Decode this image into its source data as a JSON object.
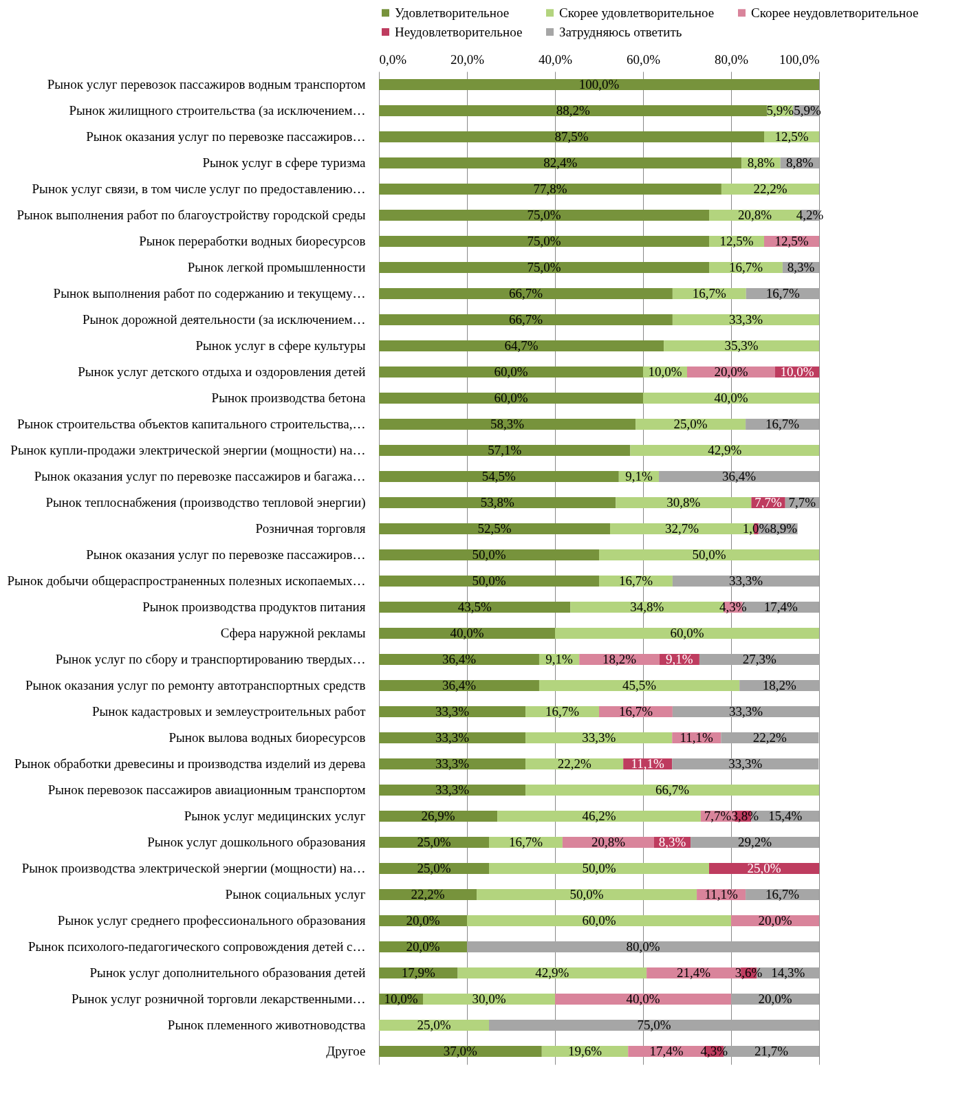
{
  "chart_data": {
    "type": "bar",
    "orientation": "horizontal",
    "stacked": true,
    "legend": "top",
    "grid": "x",
    "xlim": [
      0,
      100
    ],
    "xticks": [
      {
        "value": 0,
        "label": "0,0%"
      },
      {
        "value": 20,
        "label": "20,0%"
      },
      {
        "value": 40,
        "label": "40,0%"
      },
      {
        "value": 60,
        "label": "60,0%"
      },
      {
        "value": 80,
        "label": "80,0%"
      },
      {
        "value": 100,
        "label": "100,0%"
      }
    ],
    "categories": [
      "Рынок услуг перевозок пассажиров водным транспортом",
      "Рынок жилищного строительства (за исключением…",
      "Рынок оказания услуг по перевозке пассажиров…",
      "Рынок услуг в сфере туризма",
      "Рынок услуг связи, в том числе услуг по предоставлению…",
      "Рынок выполнения работ по благоустройству городской среды",
      "Рынок переработки водных биоресурсов",
      "Рынок легкой промышленности",
      "Рынок выполнения работ по содержанию и текущему…",
      "Рынок дорожной деятельности (за исключением…",
      "Рынок услуг в сфере культуры",
      "Рынок услуг детского отдыха и оздоровления детей",
      "Рынок производства бетона",
      "Рынок строительства объектов капитального строительства,…",
      "Рынок купли-продажи электрической энергии (мощности) на…",
      "Рынок оказания услуг по перевозке пассажиров и багажа…",
      "Рынок теплоснабжения (производство тепловой энергии)",
      "Розничная торговля",
      "Рынок оказания услуг по перевозке пассажиров…",
      "Рынок добычи общераспространенных полезных ископаемых…",
      "Рынок производства продуктов питания",
      "Сфера наружной рекламы",
      "Рынок услуг по сбору и транспортированию твердых…",
      "Рынок оказания услуг по ремонту автотранспортных средств",
      "Рынок кадастровых и землеустроительных работ",
      "Рынок вылова водных биоресурсов",
      "Рынок обработки древесины и производства изделий из дерева",
      "Рынок перевозок пассажиров авиационным транспортом",
      "Рынок услуг медицинских услуг",
      "Рынок услуг дошкольного образования",
      "Рынок производства электрической энергии (мощности) на…",
      "Рынок социальных услуг",
      "Рынок услуг среднего профессионального образования",
      "Рынок психолого-педагогического сопровождения детей с…",
      "Рынок услуг дополнительного образования детей",
      "Рынок услуг розничной торговли лекарственными…",
      "Рынок племенного животноводства",
      "Другое"
    ],
    "series": [
      {
        "name": "Удовлетворительное",
        "color": "#77933c",
        "values": [
          100.0,
          88.2,
          87.5,
          82.4,
          77.8,
          75.0,
          75.0,
          75.0,
          66.7,
          66.7,
          64.7,
          60.0,
          60.0,
          58.3,
          57.1,
          54.5,
          53.8,
          52.5,
          50.0,
          50.0,
          43.5,
          40.0,
          36.4,
          36.4,
          33.3,
          33.3,
          33.3,
          33.3,
          26.9,
          25.0,
          25.0,
          22.2,
          20.0,
          20.0,
          17.9,
          10.0,
          null,
          37.0
        ],
        "value_labels": [
          "100,0%",
          "88,2%",
          "87,5%",
          "82,4%",
          "77,8%",
          "75,0%",
          "75,0%",
          "75,0%",
          "66,7%",
          "66,7%",
          "64,7%",
          "60,0%",
          "60,0%",
          "58,3%",
          "57,1%",
          "54,5%",
          "53,8%",
          "52,5%",
          "50,0%",
          "50,0%",
          "43,5%",
          "40,0%",
          "36,4%",
          "36,4%",
          "33,3%",
          "33,3%",
          "33,3%",
          "33,3%",
          "26,9%",
          "25,0%",
          "25,0%",
          "22,2%",
          "20,0%",
          "20,0%",
          "17,9%",
          "10,0%",
          null,
          "37,0%"
        ]
      },
      {
        "name": "Скорее удовлетворительное",
        "color": "#b3d47e",
        "values": [
          null,
          5.9,
          12.5,
          8.8,
          22.2,
          20.8,
          12.5,
          16.7,
          16.7,
          33.3,
          35.3,
          10.0,
          40.0,
          25.0,
          42.9,
          9.1,
          30.8,
          32.7,
          50.0,
          16.7,
          34.8,
          60.0,
          9.1,
          45.5,
          16.7,
          33.3,
          22.2,
          66.7,
          46.2,
          16.7,
          50.0,
          50.0,
          60.0,
          null,
          42.9,
          30.0,
          25.0,
          19.6
        ],
        "value_labels": [
          null,
          "5,9%",
          "12,5%",
          "8,8%",
          "22,2%",
          "20,8%",
          "12,5%",
          "16,7%",
          "16,7%",
          "33,3%",
          "35,3%",
          "10,0%",
          "40,0%",
          "25,0%",
          "42,9%",
          "9,1%",
          "30,8%",
          "32,7%",
          "50,0%",
          "16,7%",
          "34,8%",
          "60,0%",
          "9,1%",
          "45,5%",
          "16,7%",
          "33,3%",
          "22,2%",
          "66,7%",
          "46,2%",
          "16,7%",
          "50,0%",
          "50,0%",
          "60,0%",
          null,
          "42,9%",
          "30,0%",
          "25,0%",
          "19,6%"
        ]
      },
      {
        "name": "Скорее неудовлетворительное",
        "color": "#d9849b",
        "values": [
          null,
          null,
          null,
          null,
          null,
          null,
          12.5,
          null,
          null,
          null,
          null,
          20.0,
          null,
          null,
          null,
          null,
          null,
          null,
          null,
          null,
          4.3,
          null,
          18.2,
          null,
          16.7,
          11.1,
          null,
          null,
          7.7,
          20.8,
          null,
          11.1,
          20.0,
          null,
          21.4,
          40.0,
          null,
          17.4
        ],
        "value_labels": [
          null,
          null,
          null,
          null,
          null,
          null,
          "12,5%",
          null,
          null,
          null,
          null,
          "20,0%",
          null,
          null,
          null,
          null,
          null,
          null,
          null,
          null,
          "4,3%",
          null,
          "18,2%",
          null,
          "16,7%",
          "11,1%",
          null,
          null,
          "7,7%",
          "20,8%",
          null,
          "11,1%",
          "20,0%",
          null,
          "21,4%",
          "40,0%",
          null,
          "17,4%"
        ]
      },
      {
        "name": "Неудовлетворительное",
        "color": "#be3c5f",
        "values": [
          null,
          null,
          null,
          null,
          null,
          null,
          null,
          null,
          null,
          null,
          null,
          10.0,
          null,
          null,
          null,
          null,
          7.7,
          1.0,
          null,
          null,
          null,
          null,
          9.1,
          null,
          null,
          null,
          11.1,
          null,
          3.8,
          8.3,
          25.0,
          null,
          null,
          null,
          3.6,
          null,
          null,
          4.3
        ],
        "value_labels": [
          null,
          null,
          null,
          null,
          null,
          null,
          null,
          null,
          null,
          null,
          null,
          "10,0%",
          null,
          null,
          null,
          null,
          "7,7%",
          "1,0%",
          null,
          null,
          null,
          null,
          "9,1%",
          null,
          null,
          null,
          "11,1%",
          null,
          "3,8%",
          "8,3%",
          "25,0%",
          null,
          null,
          null,
          "3,6%",
          null,
          null,
          "4,3%"
        ]
      },
      {
        "name": "Затрудняюсь ответить",
        "color": "#a6a6a6",
        "values": [
          null,
          5.9,
          null,
          8.8,
          null,
          4.2,
          null,
          8.3,
          16.7,
          null,
          null,
          null,
          null,
          16.7,
          null,
          36.4,
          7.7,
          8.9,
          null,
          33.3,
          17.4,
          null,
          27.3,
          18.2,
          33.3,
          22.2,
          33.3,
          null,
          15.4,
          29.2,
          null,
          16.7,
          null,
          80.0,
          14.3,
          20.0,
          75.0,
          21.7
        ],
        "value_labels": [
          null,
          "5,9%",
          null,
          "8,8%",
          null,
          "4,2%",
          null,
          "8,3%",
          "16,7%",
          null,
          null,
          null,
          null,
          "16,7%",
          null,
          "36,4%",
          "7,7%",
          "8,9%",
          null,
          "33,3%",
          "17,4%",
          null,
          "27,3%",
          "18,2%",
          "33,3%",
          "22,2%",
          "33,3%",
          null,
          "15,4%",
          "29,2%",
          null,
          "16,7%",
          null,
          "80,0%",
          "14,3%",
          "20,0%",
          "75,0%",
          "21,7%"
        ]
      }
    ]
  }
}
